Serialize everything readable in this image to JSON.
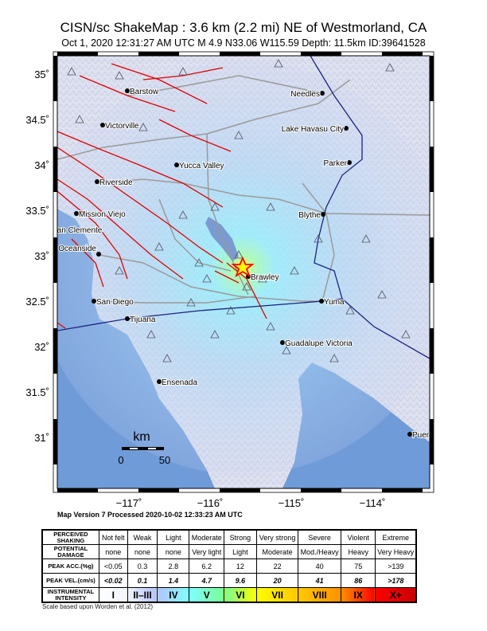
{
  "header": {
    "title": "CISN/sc ShakeMap : 3.6 km (2.2 mi) NE of Westmorland, CA",
    "subtitle": "Oct  1, 2020 12:31:27 AM UTC   M 4.9   N33.06 W115.59   Depth: 11.5km   ID:39641528"
  },
  "map": {
    "lon_ticks": [
      "−117˚",
      "−116˚",
      "−115˚",
      "−114˚"
    ],
    "lat_ticks": [
      "35˚",
      "34.5˚",
      "34˚",
      "33.5˚",
      "33˚",
      "32.5˚",
      "32˚",
      "31.5˚",
      "31˚"
    ],
    "cities": [
      "Barstow",
      "Victorville",
      "Yucca Valley",
      "Riverside",
      "Mission Viejo",
      "San Clemente",
      "Oceanside",
      "San Diego",
      "Tijuana",
      "Ensenada",
      "Brawley",
      "Yuma",
      "Guadalupe Victoria",
      "Blythe",
      "Parker",
      "Lake Havasu City",
      "Needles",
      "Puer"
    ],
    "scale_bar": {
      "unit": "km",
      "min": "0",
      "max": "50"
    },
    "epicenter_icon": "star-icon",
    "station_icon": "triangle-icon",
    "colors": {
      "ocean": "#6f9bd8",
      "fault": "#e00000",
      "border": "#1a237e",
      "road": "#9a9a9a",
      "epicenter": "#ff0000"
    }
  },
  "footer": {
    "version": "Map Version 7 Processed 2020-10-02 12:33:23 AM UTC",
    "scale_note": "Scale based upon Worden et al. (2012)"
  },
  "legend": {
    "row_headers": [
      "PERCEIVED SHAKING",
      "POTENTIAL DAMAGE",
      "PEAK ACC.(%g)",
      "PEAK VEL.(cm/s)",
      "INSTRUMENTAL INTENSITY"
    ],
    "shaking": [
      "Not felt",
      "Weak",
      "Light",
      "Moderate",
      "Strong",
      "Very strong",
      "Severe",
      "Violent",
      "Extreme"
    ],
    "damage": [
      "none",
      "none",
      "none",
      "Very light",
      "Light",
      "Moderate",
      "Mod./Heavy",
      "Heavy",
      "Very Heavy"
    ],
    "acc": [
      "<0.05",
      "0.3",
      "2.8",
      "6.2",
      "12",
      "22",
      "40",
      "75",
      ">139"
    ],
    "vel": [
      "<0.02",
      "0.1",
      "1.4",
      "4.7",
      "9.6",
      "20",
      "41",
      "86",
      ">178"
    ],
    "intensity": [
      "I",
      "II–III",
      "IV",
      "V",
      "VI",
      "VII",
      "VIII",
      "IX",
      "X+"
    ],
    "intensity_colors": [
      "#f2f4ff",
      "#b4c4ff",
      "#80ffff",
      "#7aff93",
      "#ffff00",
      "#ffc800",
      "#ff9100",
      "#ff0000",
      "#c80000"
    ]
  }
}
